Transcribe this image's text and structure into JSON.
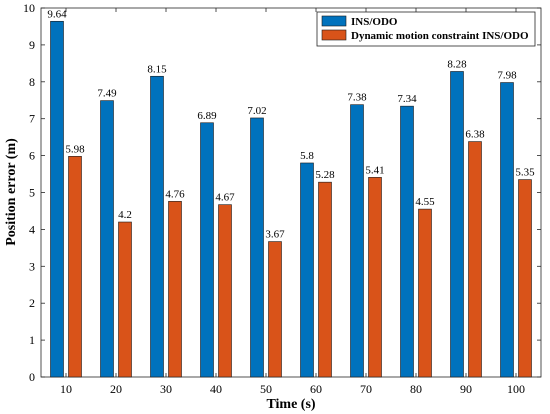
{
  "chart_data": {
    "type": "bar",
    "title": "",
    "xlabel": "Time (s)",
    "ylabel": "Position error (m)",
    "categories": [
      "10",
      "20",
      "30",
      "40",
      "50",
      "60",
      "70",
      "80",
      "90",
      "100"
    ],
    "ylim": [
      0,
      10
    ],
    "yticks": [
      "0",
      "1",
      "2",
      "3",
      "4",
      "5",
      "6",
      "7",
      "8",
      "9",
      "10"
    ],
    "grid": false,
    "legend_position": "top-right",
    "series": [
      {
        "name": "INS/ODO",
        "color": "#0072BD",
        "values": [
          9.64,
          7.49,
          8.15,
          6.89,
          7.02,
          5.8,
          7.38,
          7.34,
          8.28,
          7.98
        ],
        "labels": [
          "9.64",
          "7.49",
          "8.15",
          "6.89",
          "7.02",
          "5.8",
          "7.38",
          "7.34",
          "8.28",
          "7.98"
        ]
      },
      {
        "name": "Dynamic motion constraint INS/ODO",
        "color": "#D95319",
        "values": [
          5.98,
          4.2,
          4.76,
          4.67,
          3.67,
          5.28,
          5.41,
          4.55,
          6.38,
          5.35
        ],
        "labels": [
          "5.98",
          "4.2",
          "4.76",
          "4.67",
          "3.67",
          "5.28",
          "5.41",
          "4.55",
          "6.38",
          "5.35"
        ]
      }
    ]
  }
}
